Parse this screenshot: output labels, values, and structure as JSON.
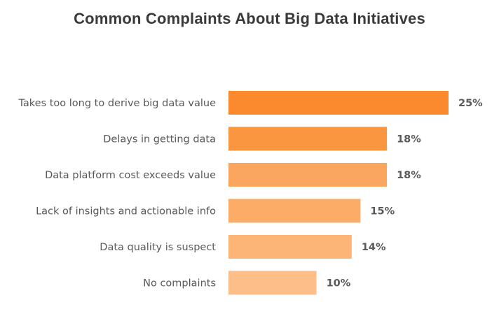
{
  "chart_data": {
    "type": "bar",
    "orientation": "horizontal",
    "title": "Common Complaints About Big Data Initiatives",
    "categories": [
      "Takes too long to derive big data value",
      "Delays in getting data",
      "Data platform cost exceeds value",
      "Lack of insights and actionable info",
      "Data quality is suspect",
      "No complaints"
    ],
    "values": [
      25,
      18,
      18,
      15,
      14,
      10
    ],
    "value_labels": [
      "25%",
      "18%",
      "18%",
      "15%",
      "14%",
      "10%"
    ],
    "bar_colors": [
      "#fb8a2e",
      "#fb9640",
      "#fba65f",
      "#fcac66",
      "#fcb477",
      "#fdbe89"
    ],
    "xlim": [
      0,
      25
    ],
    "grid": false,
    "legend": "none"
  }
}
